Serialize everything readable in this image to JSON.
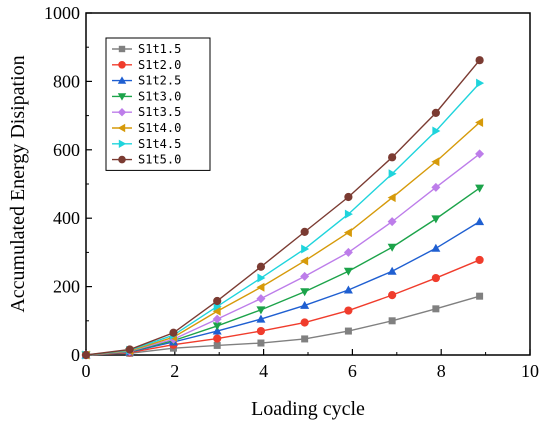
{
  "chart_data": {
    "type": "line",
    "title": "",
    "xlabel": "Loading cycle",
    "ylabel": "Accumulated Energy Disipation",
    "xlim": [
      0,
      10
    ],
    "ylim": [
      0,
      1000
    ],
    "xticks": [
      0,
      2,
      4,
      6,
      8,
      10
    ],
    "yticks": [
      0,
      200,
      400,
      600,
      800,
      1000
    ],
    "grid": false,
    "legend_position": "top-left",
    "x": [
      0,
      1,
      2,
      3,
      4,
      5,
      6,
      7,
      8,
      9
    ],
    "series": [
      {
        "name": "S1t1.5",
        "color": "#808080",
        "marker": "square",
        "values": [
          0,
          5,
          20,
          28,
          35,
          47,
          70,
          100,
          135,
          172
        ]
      },
      {
        "name": "S1t2.0",
        "color": "#f03c2c",
        "marker": "circle",
        "values": [
          0,
          7,
          30,
          48,
          70,
          95,
          130,
          175,
          225,
          278
        ]
      },
      {
        "name": "S1t2.5",
        "color": "#1f5fd1",
        "marker": "triangle-up",
        "values": [
          0,
          9,
          38,
          70,
          105,
          145,
          190,
          245,
          312,
          390
        ]
      },
      {
        "name": "S1t3.0",
        "color": "#1ca34a",
        "marker": "triangle-down",
        "values": [
          0,
          10,
          42,
          85,
          132,
          185,
          245,
          315,
          398,
          488
        ]
      },
      {
        "name": "S1t3.5",
        "color": "#bd7dea",
        "marker": "diamond",
        "values": [
          0,
          11,
          46,
          105,
          165,
          230,
          300,
          390,
          490,
          588
        ]
      },
      {
        "name": "S1t4.0",
        "color": "#d69a0a",
        "marker": "triangle-left",
        "values": [
          0,
          12,
          52,
          128,
          198,
          275,
          358,
          460,
          565,
          680
        ]
      },
      {
        "name": "S1t4.5",
        "color": "#1fd4dc",
        "marker": "triangle-right",
        "values": [
          0,
          14,
          58,
          142,
          225,
          310,
          412,
          530,
          655,
          795
        ]
      },
      {
        "name": "S1t5.0",
        "color": "#7b3b32",
        "marker": "circle",
        "values": [
          0,
          16,
          65,
          158,
          258,
          360,
          462,
          578,
          708,
          862
        ]
      }
    ]
  }
}
